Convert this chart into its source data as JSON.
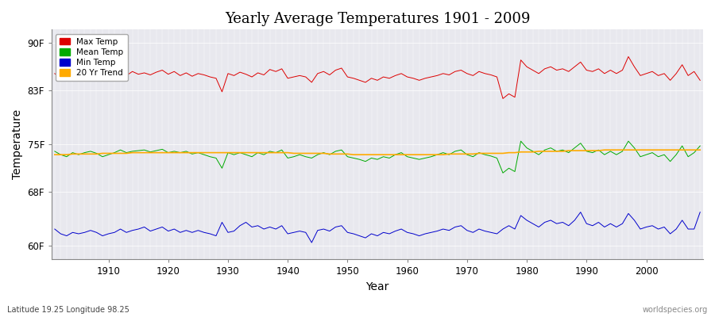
{
  "title": "Yearly Average Temperatures 1901 - 2009",
  "xlabel": "Year",
  "ylabel": "Temperature",
  "subtitle_left": "Latitude 19.25 Longitude 98.25",
  "subtitle_right": "worldspecies.org",
  "fig_bg_color": "#ffffff",
  "plot_bg_color": "#e8e8ee",
  "ylim": [
    58,
    92
  ],
  "yticks": [
    60,
    68,
    75,
    83,
    90
  ],
  "ytick_labels": [
    "60F",
    "68F",
    "75F",
    "83F",
    "90F"
  ],
  "year_start": 1901,
  "year_end": 2009,
  "max_temp_color": "#dd0000",
  "mean_temp_color": "#00aa00",
  "min_temp_color": "#0000cc",
  "trend_color": "#ffaa00",
  "legend_labels": [
    "Max Temp",
    "Mean Temp",
    "Min Temp",
    "20 Yr Trend"
  ],
  "max_temps": [
    85.5,
    84.8,
    85.2,
    85.6,
    85.1,
    85.3,
    85.8,
    85.0,
    84.5,
    85.2,
    85.3,
    85.7,
    85.2,
    85.8,
    85.4,
    85.6,
    85.3,
    85.7,
    86.0,
    85.4,
    85.8,
    85.2,
    85.6,
    85.1,
    85.5,
    85.3,
    85.0,
    84.8,
    82.8,
    85.5,
    85.2,
    85.7,
    85.4,
    85.0,
    85.6,
    85.3,
    86.1,
    85.8,
    86.2,
    84.8,
    85.0,
    85.2,
    85.0,
    84.2,
    85.5,
    85.8,
    85.3,
    86.0,
    86.3,
    85.0,
    84.8,
    84.5,
    84.2,
    84.8,
    84.5,
    85.0,
    84.8,
    85.2,
    85.5,
    85.0,
    84.8,
    84.5,
    84.8,
    85.0,
    85.2,
    85.5,
    85.3,
    85.8,
    86.0,
    85.5,
    85.2,
    85.8,
    85.5,
    85.3,
    85.0,
    81.8,
    82.5,
    82.0,
    87.5,
    86.5,
    86.0,
    85.5,
    86.2,
    86.5,
    86.0,
    86.2,
    85.8,
    86.5,
    87.2,
    86.0,
    85.8,
    86.2,
    85.5,
    86.0,
    85.5,
    86.0,
    88.0,
    86.5,
    85.2,
    85.5,
    85.8,
    85.2,
    85.5,
    84.5,
    85.5,
    86.8,
    85.2,
    85.8,
    84.5
  ],
  "mean_temps": [
    74.0,
    73.5,
    73.2,
    73.8,
    73.5,
    73.8,
    74.0,
    73.7,
    73.2,
    73.5,
    73.8,
    74.2,
    73.8,
    74.0,
    74.1,
    74.2,
    73.9,
    74.1,
    74.3,
    73.8,
    74.0,
    73.8,
    74.0,
    73.6,
    73.8,
    73.5,
    73.2,
    73.0,
    71.5,
    73.8,
    73.5,
    73.8,
    73.5,
    73.2,
    73.8,
    73.5,
    74.0,
    73.8,
    74.2,
    73.0,
    73.2,
    73.5,
    73.2,
    73.0,
    73.5,
    73.8,
    73.5,
    74.0,
    74.2,
    73.2,
    73.0,
    72.8,
    72.5,
    73.0,
    72.8,
    73.2,
    73.0,
    73.5,
    73.8,
    73.2,
    73.0,
    72.8,
    73.0,
    73.2,
    73.5,
    73.8,
    73.5,
    74.0,
    74.2,
    73.5,
    73.2,
    73.8,
    73.5,
    73.3,
    73.0,
    70.8,
    71.5,
    71.0,
    75.5,
    74.5,
    74.0,
    73.5,
    74.2,
    74.5,
    74.0,
    74.2,
    73.8,
    74.5,
    75.2,
    74.0,
    73.8,
    74.2,
    73.5,
    74.0,
    73.5,
    74.0,
    75.5,
    74.5,
    73.2,
    73.5,
    73.8,
    73.2,
    73.5,
    72.5,
    73.5,
    74.8,
    73.2,
    73.8,
    74.8
  ],
  "min_temps": [
    62.5,
    61.8,
    61.5,
    62.0,
    61.8,
    62.0,
    62.3,
    62.0,
    61.5,
    61.8,
    62.0,
    62.5,
    62.0,
    62.3,
    62.5,
    62.8,
    62.2,
    62.5,
    62.8,
    62.2,
    62.5,
    62.0,
    62.3,
    62.0,
    62.3,
    62.0,
    61.8,
    61.5,
    63.5,
    62.0,
    62.2,
    63.0,
    63.5,
    62.8,
    63.0,
    62.5,
    62.8,
    62.5,
    63.0,
    61.8,
    62.0,
    62.2,
    62.0,
    60.5,
    62.3,
    62.5,
    62.2,
    62.8,
    63.0,
    62.0,
    61.8,
    61.5,
    61.2,
    61.8,
    61.5,
    62.0,
    61.8,
    62.2,
    62.5,
    62.0,
    61.8,
    61.5,
    61.8,
    62.0,
    62.2,
    62.5,
    62.3,
    62.8,
    63.0,
    62.3,
    62.0,
    62.5,
    62.2,
    62.0,
    61.8,
    62.5,
    63.0,
    62.5,
    64.5,
    63.8,
    63.3,
    62.8,
    63.5,
    63.8,
    63.3,
    63.5,
    63.0,
    63.8,
    65.0,
    63.3,
    63.0,
    63.5,
    62.8,
    63.3,
    62.8,
    63.3,
    64.8,
    63.8,
    62.5,
    62.8,
    63.0,
    62.5,
    62.8,
    61.8,
    62.5,
    63.8,
    62.5,
    62.5,
    65.0
  ],
  "trend_temps": [
    73.5,
    73.5,
    73.5,
    73.6,
    73.6,
    73.6,
    73.6,
    73.6,
    73.7,
    73.7,
    73.7,
    73.7,
    73.7,
    73.8,
    73.8,
    73.8,
    73.8,
    73.8,
    73.8,
    73.8,
    73.8,
    73.8,
    73.8,
    73.8,
    73.8,
    73.8,
    73.8,
    73.8,
    73.8,
    73.8,
    73.8,
    73.8,
    73.8,
    73.8,
    73.8,
    73.8,
    73.8,
    73.8,
    73.8,
    73.8,
    73.7,
    73.7,
    73.7,
    73.7,
    73.7,
    73.7,
    73.6,
    73.6,
    73.6,
    73.6,
    73.5,
    73.5,
    73.5,
    73.5,
    73.5,
    73.5,
    73.5,
    73.5,
    73.5,
    73.5,
    73.5,
    73.5,
    73.5,
    73.5,
    73.5,
    73.5,
    73.6,
    73.6,
    73.6,
    73.6,
    73.6,
    73.7,
    73.7,
    73.7,
    73.7,
    73.7,
    73.8,
    73.8,
    73.9,
    73.9,
    73.9,
    74.0,
    74.0,
    74.0,
    74.0,
    74.0,
    74.1,
    74.1,
    74.1,
    74.1,
    74.1,
    74.1,
    74.2,
    74.2,
    74.2,
    74.2,
    74.2,
    74.2,
    74.2,
    74.2,
    74.2,
    74.2,
    74.2,
    74.2,
    74.2,
    74.2,
    74.2,
    74.2,
    74.2
  ]
}
